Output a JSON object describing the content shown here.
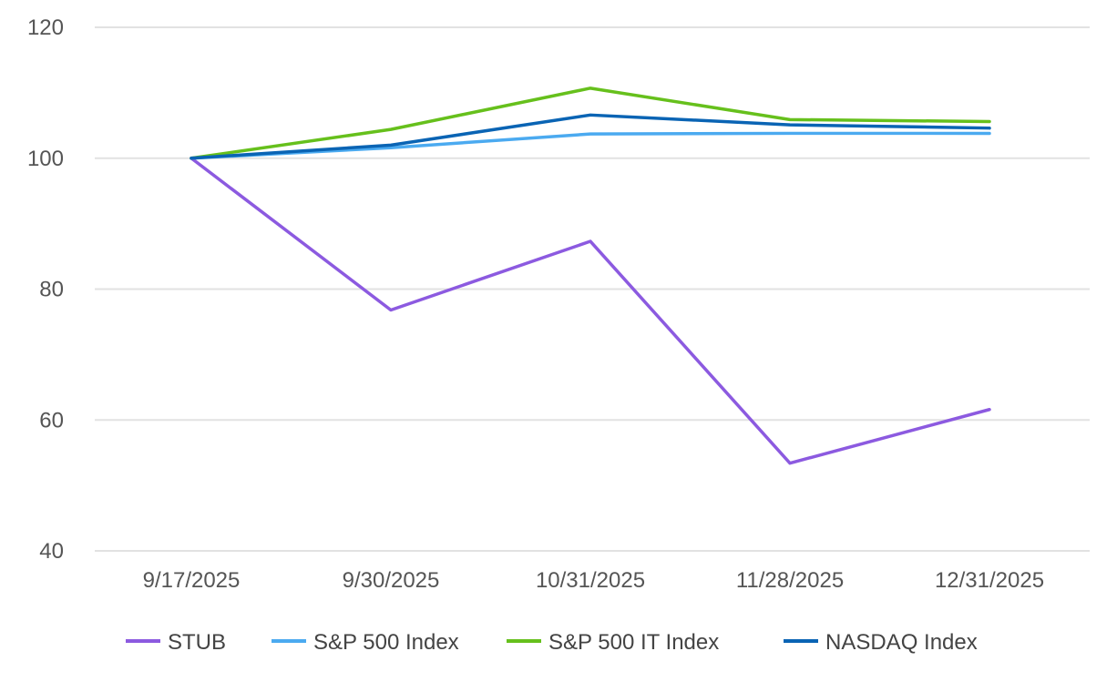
{
  "chart_data": {
    "type": "line",
    "title": "",
    "xlabel": "",
    "ylabel": "",
    "categories": [
      "9/17/2025",
      "9/30/2025",
      "10/31/2025",
      "11/28/2025",
      "12/31/2025"
    ],
    "ylim": [
      40,
      120
    ],
    "yticks": [
      40,
      60,
      80,
      100,
      120
    ],
    "y_tick_labels": [
      "40",
      "60",
      "80",
      "100",
      "120"
    ],
    "grid": true,
    "legend_position": "bottom",
    "series": [
      {
        "name": "STUB",
        "color": "#8c5ae0",
        "values": [
          100.0,
          76.8,
          87.3,
          53.4,
          61.6
        ]
      },
      {
        "name": "S&P 500 Index",
        "color": "#4baaf0",
        "values": [
          100.0,
          101.6,
          103.7,
          103.8,
          103.8
        ]
      },
      {
        "name": "S&P 500 IT Index",
        "color": "#66c01c",
        "values": [
          100.0,
          104.4,
          110.7,
          105.9,
          105.6
        ]
      },
      {
        "name": "NASDAQ Index",
        "color": "#0a64b4",
        "values": [
          100.0,
          102.0,
          106.6,
          105.1,
          104.6
        ]
      }
    ]
  }
}
